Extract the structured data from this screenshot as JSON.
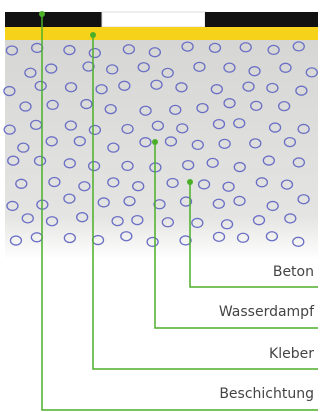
{
  "labels": [
    "Beton",
    "Wasserdampf",
    "Kleber",
    "Beschichtung"
  ]
}
